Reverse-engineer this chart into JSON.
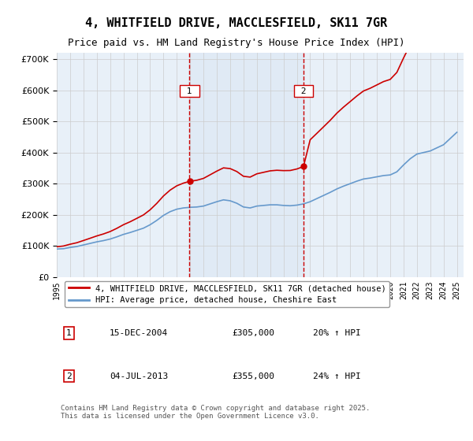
{
  "title": "4, WHITFIELD DRIVE, MACCLESFIELD, SK11 7GR",
  "subtitle": "Price paid vs. HM Land Registry's House Price Index (HPI)",
  "ylabel": "",
  "background_color": "#ffffff",
  "plot_bg_color": "#ffffff",
  "grid_color": "#cccccc",
  "line1_color": "#cc0000",
  "line2_color": "#6699cc",
  "vline_color": "#cc0000",
  "vline1_x": 2004.95,
  "vline2_x": 2013.5,
  "marker1_label": "1",
  "marker2_label": "2",
  "marker1_year": 2004.95,
  "marker2_year": 2013.5,
  "marker1_price": 305000,
  "marker2_price": 355000,
  "legend1": "4, WHITFIELD DRIVE, MACCLESFIELD, SK11 7GR (detached house)",
  "legend2": "HPI: Average price, detached house, Cheshire East",
  "annotation1_box": "1",
  "annotation1_date": "15-DEC-2004",
  "annotation1_price": "£305,000",
  "annotation1_hpi": "20% ↑ HPI",
  "annotation2_box": "2",
  "annotation2_date": "04-JUL-2013",
  "annotation2_price": "£355,000",
  "annotation2_hpi": "24% ↑ HPI",
  "footer": "Contains HM Land Registry data © Crown copyright and database right 2025.\nThis data is licensed under the Open Government Licence v3.0.",
  "ylim": [
    0,
    720000
  ],
  "xlim_start": 1995,
  "xlim_end": 2025.5
}
